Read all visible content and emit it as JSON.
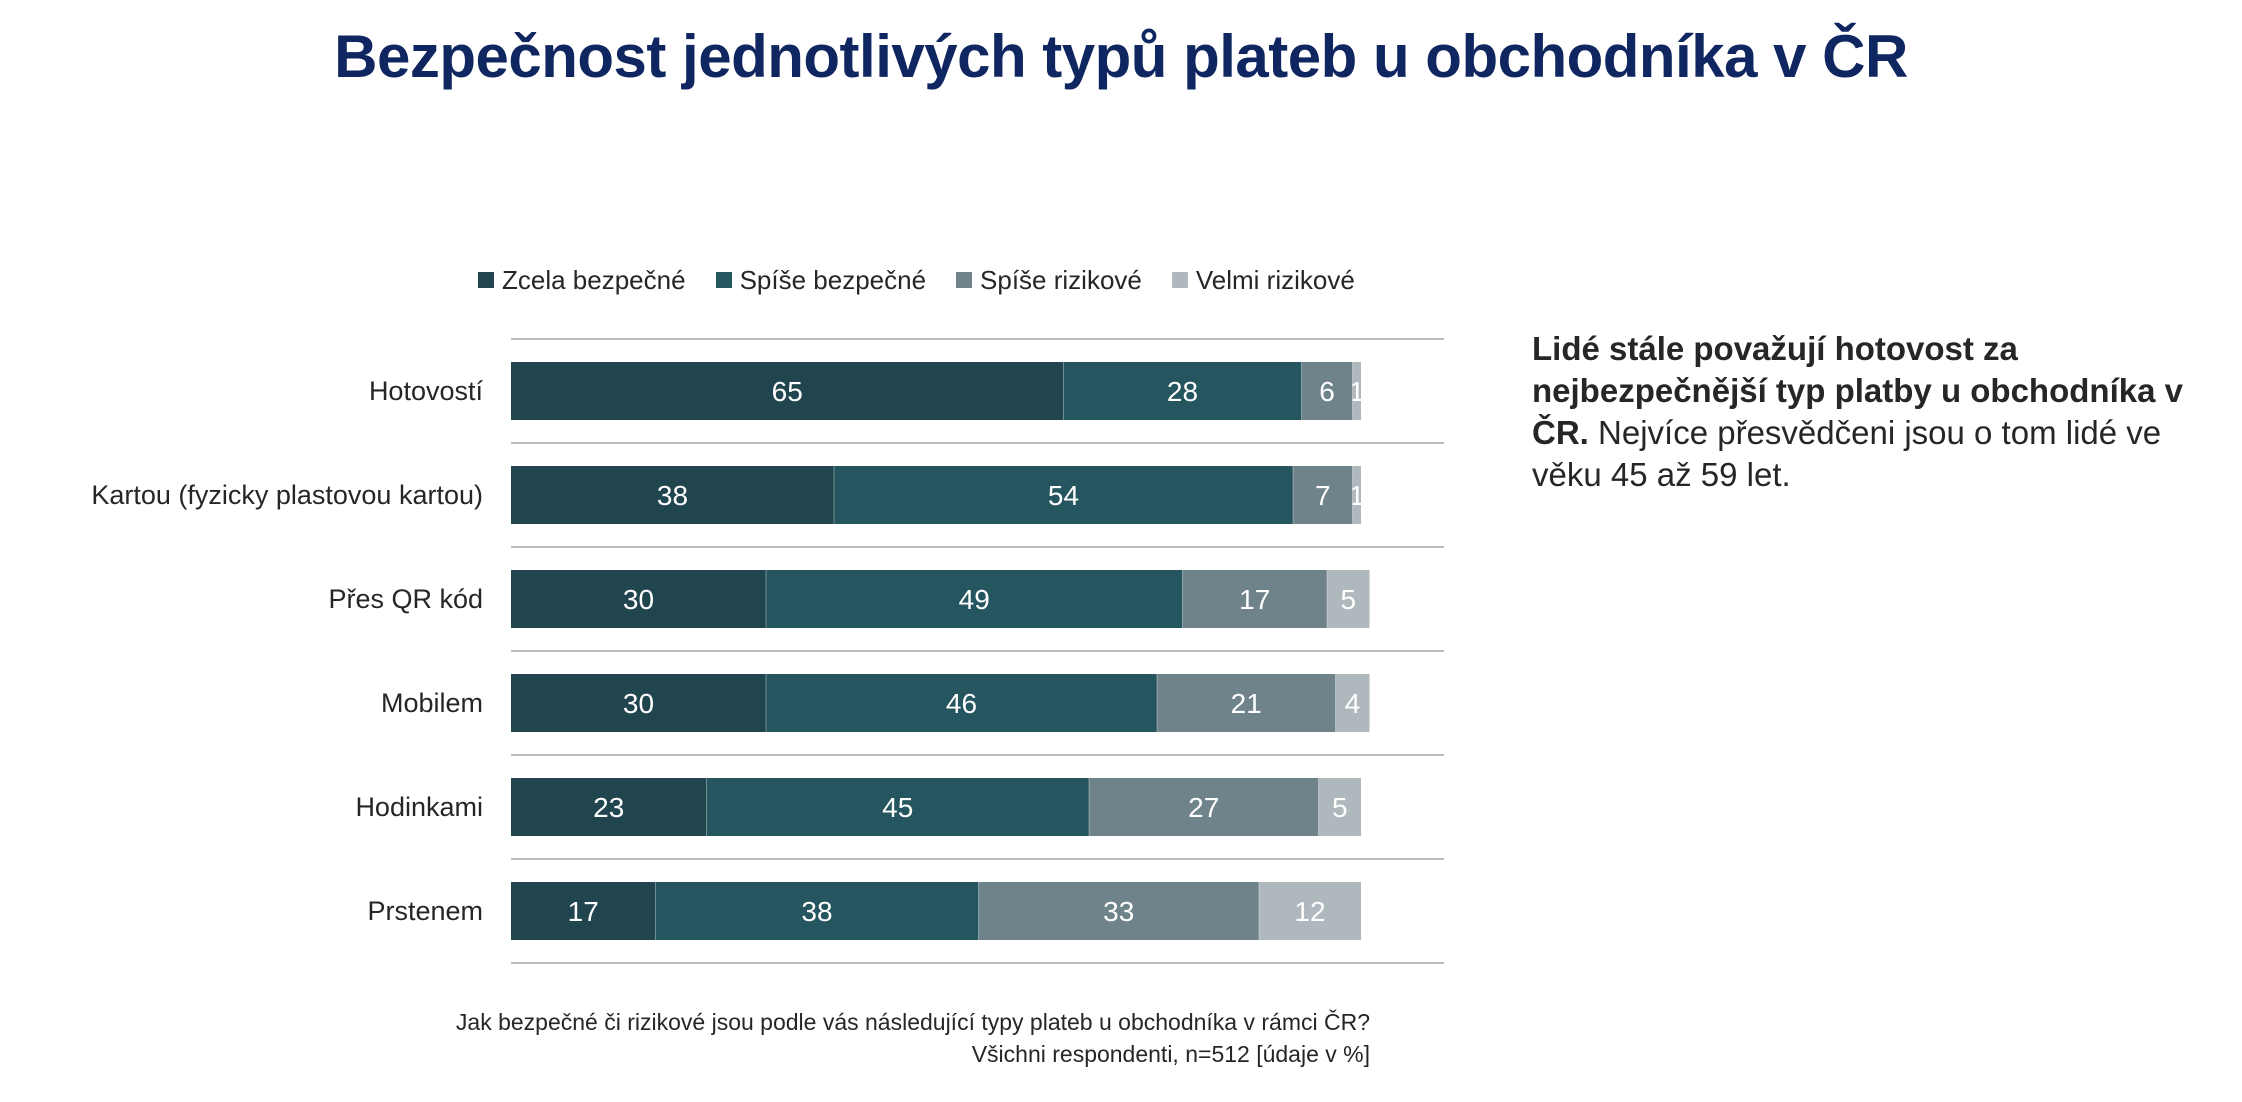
{
  "title": "Bezpečnost jednotlivých typů plateb u obchodníka v ČR",
  "insight": {
    "bold": "Lidé stále považují hotovost za nejbezpečnější typ platby u obchodníka v ČR.",
    "normal": "Nejvíce přesvědčeni jsou o tom lidé ve věku 45 až 59 let."
  },
  "footnote": {
    "question": "Jak bezpečné či rizikové jsou podle vás následující typy plateb u obchodníka v rámci ČR?",
    "base": "Všichni respondenti, n=512 [údaje v %]"
  },
  "chart_data": {
    "type": "bar",
    "orientation": "horizontal",
    "stacked": true,
    "title": "",
    "xlabel": "",
    "ylabel": "",
    "xlim": [
      0,
      110
    ],
    "legend_position": "top",
    "categories": [
      "Hotovostí",
      "Kartou (fyzicky plastovou kartou)",
      "Přes QR kód",
      "Mobilem",
      "Hodinkami",
      "Prstenem"
    ],
    "series": [
      {
        "name": "Zcela bezpečné",
        "color": "#21454f",
        "values": [
          65,
          38,
          30,
          30,
          23,
          17
        ]
      },
      {
        "name": "Spíše bezpečné",
        "color": "#25565f",
        "values": [
          28,
          54,
          49,
          46,
          45,
          38
        ]
      },
      {
        "name": "Spíše rizikové",
        "color": "#6f838a",
        "values": [
          6,
          7,
          17,
          21,
          27,
          33
        ]
      },
      {
        "name": "Velmi rizikové",
        "color": "#aeb8bd",
        "values": [
          1,
          1,
          5,
          4,
          5,
          12
        ]
      }
    ]
  }
}
